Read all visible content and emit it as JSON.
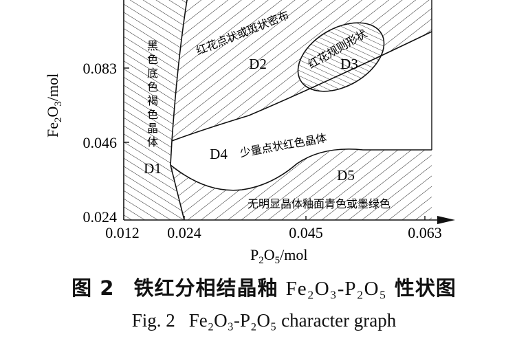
{
  "axes": {
    "y_label": {
      "main": "Fe",
      "s1": "2",
      "mid": "O",
      "s2": "3",
      "unit": "/mol"
    },
    "x_label": {
      "main": "P",
      "s1": "2",
      "mid": "O",
      "s2": "5",
      "unit": "/mol"
    },
    "y_ticks": [
      "0.083",
      "0.046",
      "0.024"
    ],
    "x_ticks": [
      "0.012",
      "0.024",
      "0.045",
      "0.063"
    ]
  },
  "regions": {
    "d1": {
      "id": "D1",
      "desc": [
        "黑",
        "色",
        "底",
        "色",
        "褐",
        "色",
        "晶",
        "体"
      ]
    },
    "d2": {
      "id": "D2",
      "desc": "红花点状或斑状密布"
    },
    "d3": {
      "id": "D3",
      "desc": "红花规则形状"
    },
    "d4": {
      "id": "D4",
      "desc": "少量点状红色晶体"
    },
    "d5": {
      "id": "D5",
      "desc": "无明显晶体釉面青色或墨绿色"
    }
  },
  "caption": {
    "cn": {
      "fig": "图 2",
      "text": "铁红分相结晶釉",
      "formula": "Fe₂O₃-P₂O₅",
      "suffix": "性状图"
    },
    "en": {
      "fig": "Fig. 2",
      "formula": "Fe₂O₃-P₂O₅",
      "text": "character graph"
    }
  }
}
